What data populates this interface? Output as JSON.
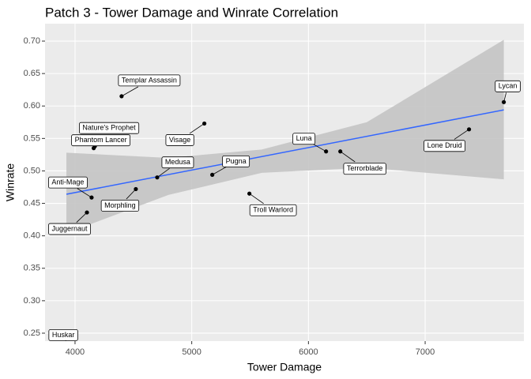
{
  "chart_data": {
    "type": "scatter",
    "title": "Patch 3  - Tower Damage and Winrate Correlation",
    "x_label": "Tower Damage",
    "y_label": "Winrate",
    "labels": [
      "Templar Assassin",
      "Nature's Prophet",
      "Phantom Lancer",
      "Visage",
      "Medusa",
      "Pugna",
      "Anti-Mage",
      "Morphling",
      "Juggernaut",
      "Troll Warlord",
      "Luna",
      "Terrorblade",
      "Lone Druid",
      "Lycan",
      "Huskar"
    ],
    "x": [
      4399,
      4170,
      4160,
      5108,
      4704,
      5176,
      4142,
      4521,
      4102,
      5494,
      6151,
      6273,
      7376,
      7674,
      3940
    ],
    "values": [
      0.615,
      0.538,
      0.535,
      0.573,
      0.49,
      0.494,
      0.459,
      0.472,
      0.436,
      0.465,
      0.53,
      0.53,
      0.564,
      0.606,
      0.23
    ],
    "point_color": "#000000",
    "fit": {
      "x": [
        3926,
        7674
      ],
      "values": [
        0.464,
        0.594
      ],
      "color": "#3366ff"
    },
    "band": {
      "x": [
        3926,
        4800,
        5600,
        6500,
        7674
      ],
      "lower": [
        0.404,
        0.463,
        0.497,
        0.505,
        0.487
      ],
      "upper": [
        0.528,
        0.52,
        0.533,
        0.575,
        0.702
      ],
      "color": "#c4c4c4"
    },
    "xlim": [
      3743,
      7846
    ],
    "ylim": [
      0.2378,
      0.7268
    ],
    "xticks": [
      4000,
      5000,
      6000,
      7000
    ],
    "yticks": [
      0.25,
      {
        "value": 0.3,
        "label": "0.30"
      },
      0.35,
      {
        "value": 0.4,
        "label": "0.40"
      },
      0.45,
      {
        "value": 0.5,
        "label": "0.50"
      },
      0.55,
      {
        "value": 0.6,
        "label": "0.60"
      },
      0.65,
      {
        "value": 0.7,
        "label": "0.70"
      }
    ],
    "grid": true
  }
}
